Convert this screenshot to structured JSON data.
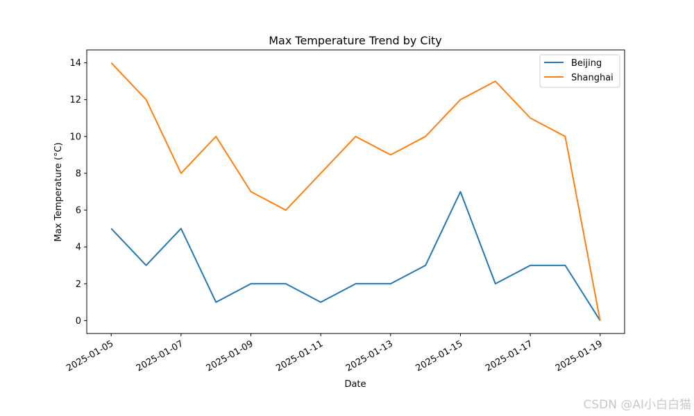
{
  "chart_data": {
    "type": "line",
    "title": "Max Temperature Trend by City",
    "xlabel": "Date",
    "ylabel": "Max Temperature (°C)",
    "x": [
      "2025-01-05",
      "2025-01-06",
      "2025-01-07",
      "2025-01-08",
      "2025-01-09",
      "2025-01-10",
      "2025-01-11",
      "2025-01-12",
      "2025-01-13",
      "2025-01-14",
      "2025-01-15",
      "2025-01-16",
      "2025-01-17",
      "2025-01-18",
      "2025-01-19"
    ],
    "xticks": [
      "2025-01-05",
      "2025-01-07",
      "2025-01-09",
      "2025-01-11",
      "2025-01-13",
      "2025-01-15",
      "2025-01-17",
      "2025-01-19"
    ],
    "yticks": [
      0,
      2,
      4,
      6,
      8,
      10,
      12,
      14
    ],
    "ylim": [
      -0.7,
      14.7
    ],
    "xlim": [
      "2025-01-04T07:12",
      "2025-01-19T16:48"
    ],
    "grid": false,
    "legend_position": "top-right",
    "series": [
      {
        "name": "Beijing",
        "color": "#1f77b4",
        "values": [
          5,
          3,
          5,
          1,
          2,
          2,
          1,
          2,
          2,
          3,
          7,
          2,
          3,
          3,
          0
        ]
      },
      {
        "name": "Shanghai",
        "color": "#ff7f0e",
        "values": [
          14,
          12,
          8,
          10,
          7,
          6,
          8,
          10,
          9,
          10,
          12,
          13,
          11,
          10,
          0
        ]
      }
    ]
  },
  "watermark": "CSDN @AI小白白猫"
}
